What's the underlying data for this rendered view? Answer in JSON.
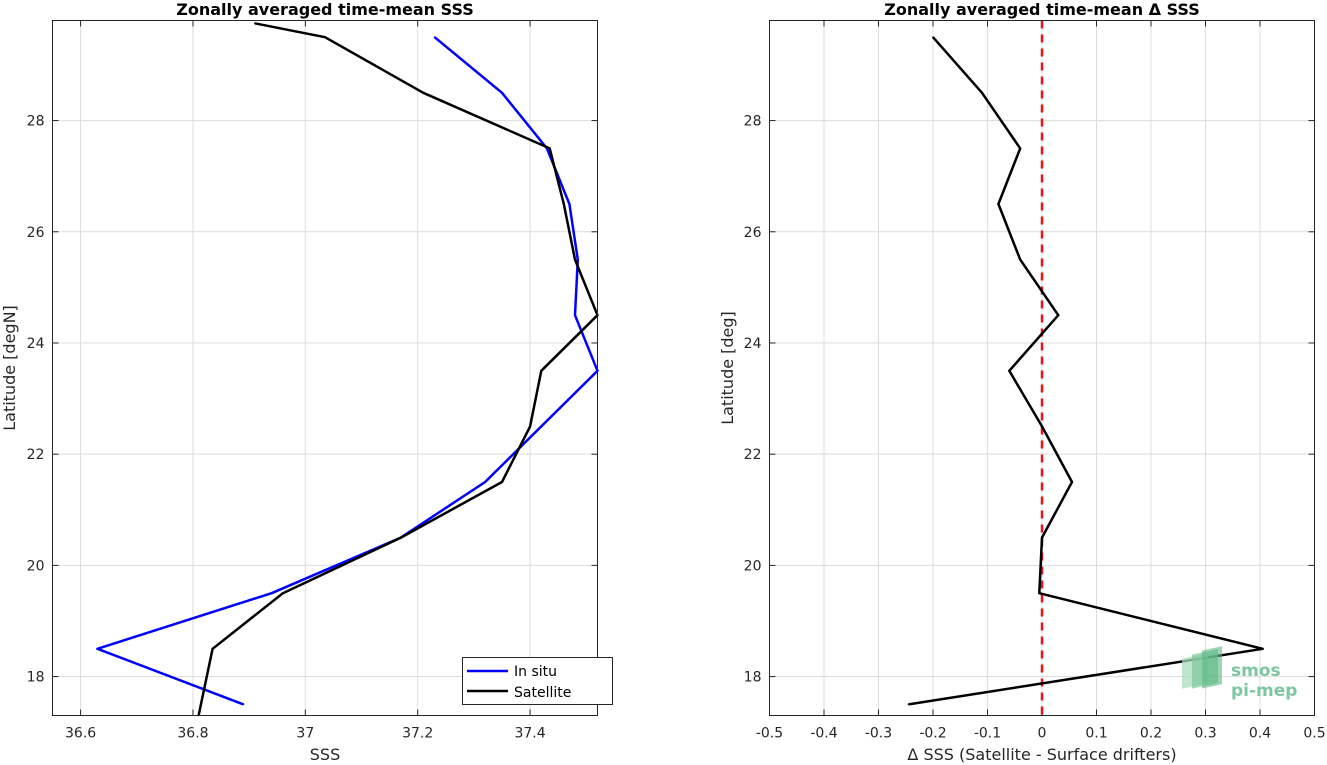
{
  "chart_data": [
    {
      "type": "line",
      "title": "Zonally averaged time-mean SSS",
      "xlabel": "SSS",
      "ylabel": "Latitude [degN]",
      "xlim": [
        36.55,
        37.52
      ],
      "ylim": [
        17.3,
        29.8
      ],
      "xticks": [
        36.6,
        36.8,
        37.0,
        37.2,
        37.4
      ],
      "xtick_labels": [
        "36.6",
        "36.8",
        "37",
        "37.2",
        "37.4"
      ],
      "yticks": [
        18,
        20,
        22,
        24,
        26,
        28
      ],
      "ytick_labels": [
        "18",
        "20",
        "22",
        "24",
        "26",
        "28"
      ],
      "grid": true,
      "legend_position": "bottom-right",
      "series": [
        {
          "name": "In situ",
          "color": "#0000ff",
          "x": [
            36.89,
            36.63,
            36.94,
            37.17,
            37.32,
            37.42,
            37.52,
            37.48,
            37.485,
            37.47,
            37.43,
            37.35,
            37.23
          ],
          "y": [
            17.5,
            18.5,
            19.5,
            20.5,
            21.5,
            22.5,
            23.5,
            24.5,
            25.5,
            26.5,
            27.5,
            28.5,
            29.5
          ]
        },
        {
          "name": "Satellite",
          "color": "#000000",
          "x": [
            36.81,
            36.835,
            36.96,
            37.17,
            37.35,
            37.4,
            37.42,
            37.52,
            37.48,
            37.46,
            37.435,
            37.21,
            37.035,
            36.91
          ],
          "y": [
            17.3,
            18.5,
            19.5,
            20.5,
            21.5,
            22.5,
            23.5,
            24.5,
            25.5,
            26.5,
            27.5,
            28.5,
            29.5,
            29.75
          ]
        }
      ]
    },
    {
      "type": "line",
      "title": "Zonally averaged time-mean Δ SSS",
      "xlabel": "Δ SSS (Satellite - Surface drifters)",
      "ylabel": "Latitude [deg]",
      "xlim": [
        -0.5,
        0.5
      ],
      "ylim": [
        17.3,
        29.8
      ],
      "xticks": [
        -0.5,
        -0.4,
        -0.3,
        -0.2,
        -0.1,
        0,
        0.1,
        0.2,
        0.3,
        0.4,
        0.5
      ],
      "xtick_labels": [
        "-0.5",
        "-0.4",
        "-0.3",
        "-0.2",
        "-0.1",
        "0",
        "0.1",
        "0.2",
        "0.3",
        "0.4",
        "0.5"
      ],
      "yticks": [
        18,
        20,
        22,
        24,
        26,
        28
      ],
      "ytick_labels": [
        "18",
        "20",
        "22",
        "24",
        "26",
        "28"
      ],
      "grid": true,
      "reference_line": {
        "x": 0,
        "color": "#e8141b",
        "style": "dashed"
      },
      "series": [
        {
          "color": "#000000",
          "x": [
            -0.245,
            0.405,
            -0.005,
            0.0,
            0.055,
            0.0,
            -0.06,
            0.03,
            -0.04,
            -0.08,
            -0.04,
            -0.11,
            -0.2
          ],
          "y": [
            17.5,
            18.5,
            19.5,
            20.5,
            21.5,
            22.5,
            23.5,
            24.5,
            25.5,
            26.5,
            27.5,
            28.5,
            29.5
          ]
        }
      ]
    }
  ],
  "watermark": {
    "line1": "smos",
    "line2": "pi-mep"
  }
}
